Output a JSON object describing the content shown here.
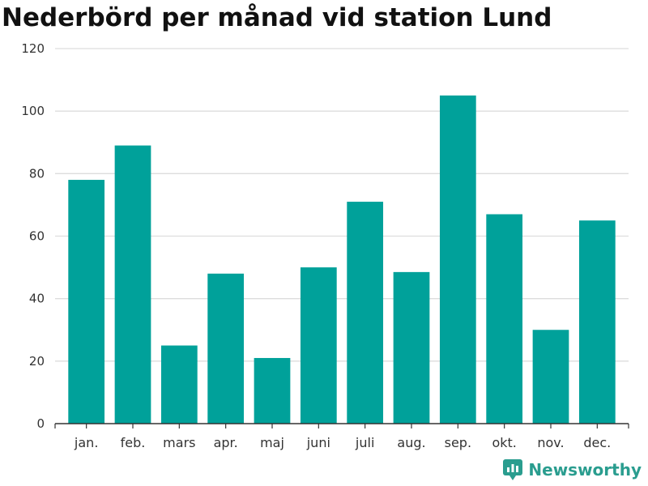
{
  "title": "Nederbörd per månad vid station Lund",
  "brand": {
    "name": "Newsworthy"
  },
  "colors": {
    "bar": "#00a19a",
    "grid": "#dddddd",
    "axis": "#333333",
    "brand": "#2a9d8f"
  },
  "chart_data": {
    "type": "bar",
    "title": "Nederbörd per månad vid station Lund",
    "categories": [
      "jan.",
      "feb.",
      "mars",
      "apr.",
      "maj",
      "juni",
      "juli",
      "aug.",
      "sep.",
      "okt.",
      "nov.",
      "dec."
    ],
    "values": [
      78,
      89,
      25,
      48,
      21,
      50,
      71,
      48.5,
      105,
      67,
      30,
      65
    ],
    "ylim": [
      0,
      120
    ],
    "yticks": [
      0,
      20,
      40,
      60,
      80,
      100,
      120
    ],
    "grid": true,
    "legend": "none"
  }
}
